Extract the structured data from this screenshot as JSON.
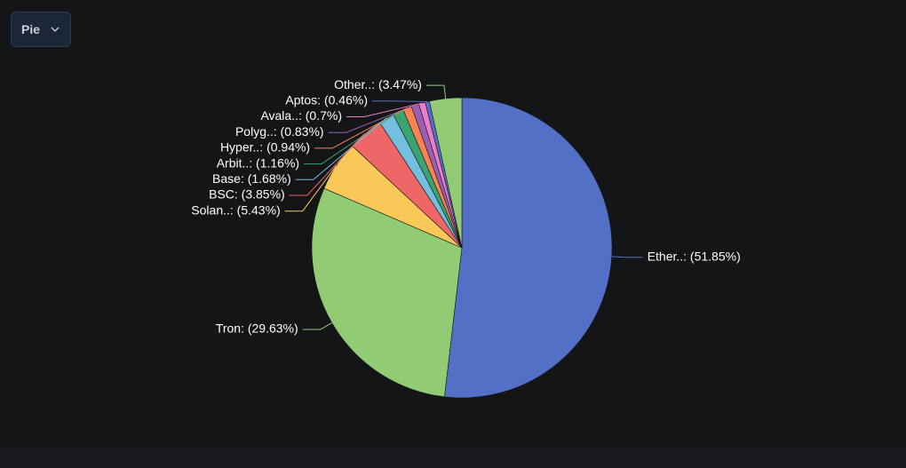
{
  "selector": {
    "label": "Pie"
  },
  "chart_data": {
    "type": "pie",
    "values": [
      51.85,
      29.63,
      5.43,
      3.85,
      1.68,
      1.16,
      0.94,
      0.83,
      0.7,
      0.46,
      3.47
    ],
    "value_labels": [
      "Ether..: (51.85%)",
      "Tron: (29.63%)",
      "Solan..: (5.43%)",
      "BSC: (3.85%)",
      "Base: (1.68%)",
      "Arbit..: (1.16%)",
      "Hyper..: (0.94%)",
      "Polyg..: (0.83%)",
      "Avala..: (0.7%)",
      "Aptos: (0.46%)",
      "Other..: (3.47%)"
    ],
    "colors": [
      "#5470c6",
      "#91cc75",
      "#fac858",
      "#ee6666",
      "#73c0de",
      "#3ba272",
      "#fc8452",
      "#9a60b4",
      "#ea7ccc",
      "#5470c6",
      "#91cc75"
    ]
  }
}
